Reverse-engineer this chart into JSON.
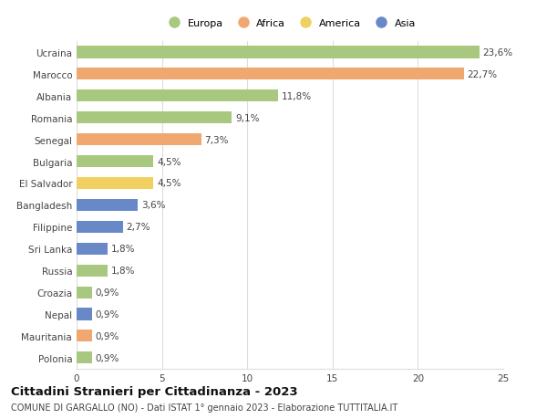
{
  "countries": [
    "Polonia",
    "Mauritania",
    "Nepal",
    "Croazia",
    "Russia",
    "Sri Lanka",
    "Filippine",
    "Bangladesh",
    "El Salvador",
    "Bulgaria",
    "Senegal",
    "Romania",
    "Albania",
    "Marocco",
    "Ucraina"
  ],
  "values": [
    0.9,
    0.9,
    0.9,
    0.9,
    1.8,
    1.8,
    2.7,
    3.6,
    4.5,
    4.5,
    7.3,
    9.1,
    11.8,
    22.7,
    23.6
  ],
  "labels": [
    "0,9%",
    "0,9%",
    "0,9%",
    "0,9%",
    "1,8%",
    "1,8%",
    "2,7%",
    "3,6%",
    "4,5%",
    "4,5%",
    "7,3%",
    "9,1%",
    "11,8%",
    "22,7%",
    "23,6%"
  ],
  "colors": [
    "#a8c880",
    "#f0a870",
    "#6888c8",
    "#a8c880",
    "#a8c880",
    "#6888c8",
    "#6888c8",
    "#6888c8",
    "#f0d060",
    "#a8c880",
    "#f0a870",
    "#a8c880",
    "#a8c880",
    "#f0a870",
    "#a8c880"
  ],
  "legend_labels": [
    "Europa",
    "Africa",
    "America",
    "Asia"
  ],
  "legend_colors": [
    "#a8c880",
    "#f0a870",
    "#f0d060",
    "#6888c8"
  ],
  "xlim": [
    0,
    25
  ],
  "xticks": [
    0,
    5,
    10,
    15,
    20,
    25
  ],
  "title": "Cittadini Stranieri per Cittadinanza - 2023",
  "subtitle": "COMUNE DI GARGALLO (NO) - Dati ISTAT 1° gennaio 2023 - Elaborazione TUTTITALIA.IT",
  "bg_color": "#ffffff",
  "grid_color": "#dddddd",
  "bar_height": 0.55,
  "label_fontsize": 7.5,
  "ytick_fontsize": 7.5,
  "xtick_fontsize": 7.5,
  "title_fontsize": 9.5,
  "subtitle_fontsize": 7.0
}
